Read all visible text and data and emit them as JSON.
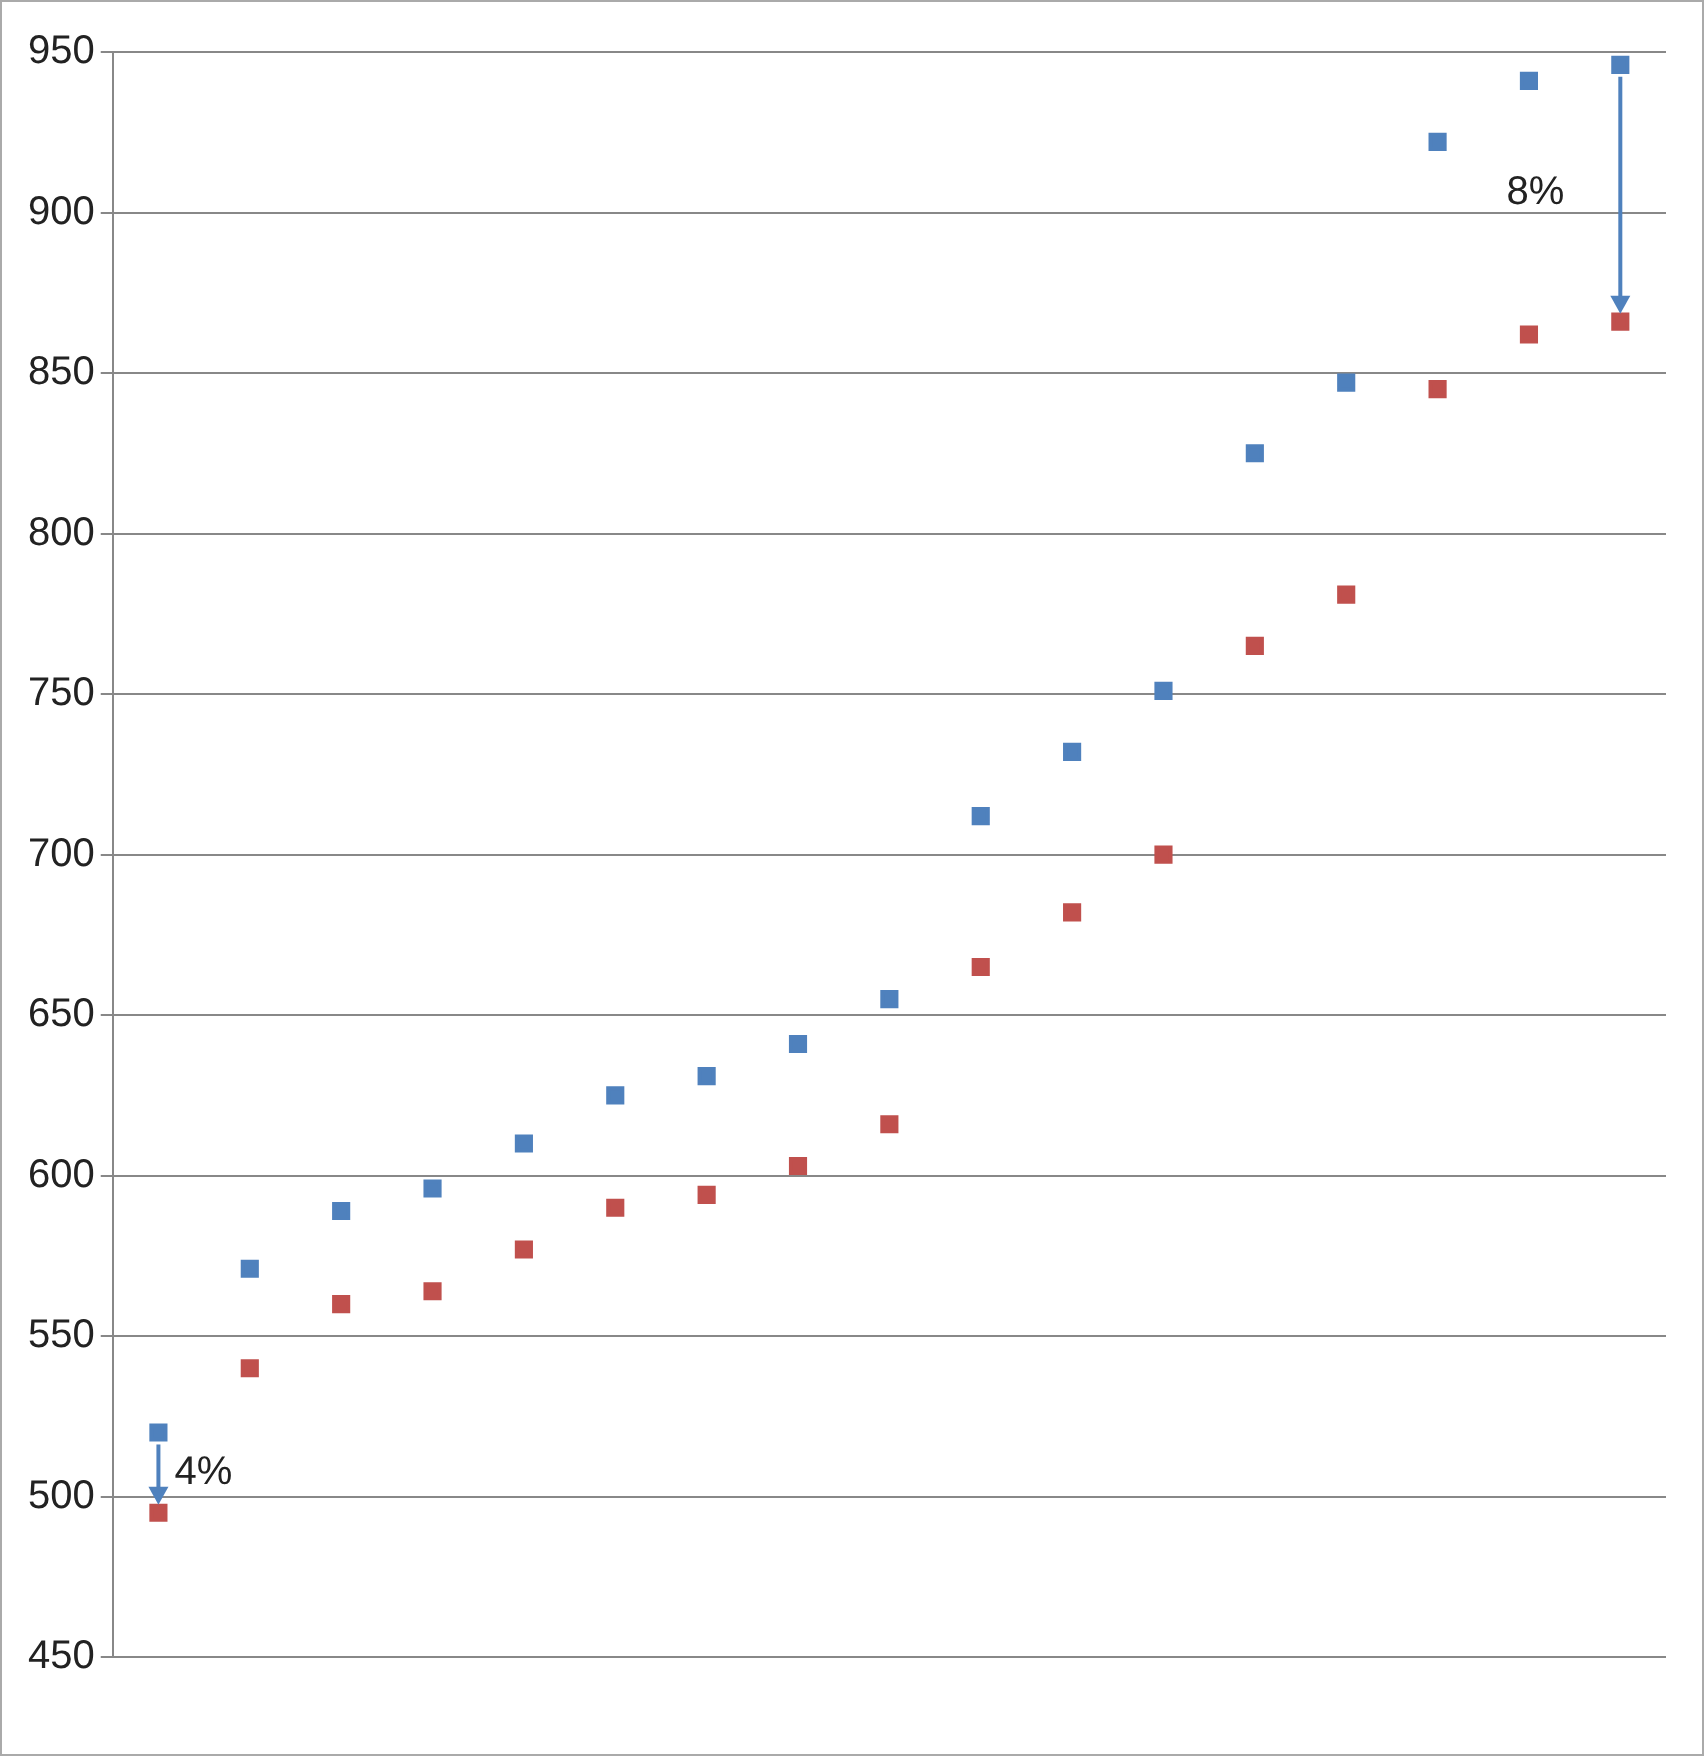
{
  "chart_data": {
    "type": "scatter",
    "categories": [
      null,
      null,
      null,
      null,
      null,
      null,
      null,
      null,
      null,
      null,
      null,
      null,
      null,
      null,
      null,
      null,
      null
    ],
    "series": [
      {
        "color": "#4f81bd",
        "values": [
          520,
          571,
          589,
          596,
          610,
          625,
          631,
          641,
          655,
          712,
          732,
          751,
          825,
          847,
          922,
          941,
          946
        ]
      },
      {
        "color": "#c0504d",
        "values": [
          495,
          540,
          560,
          564,
          577,
          590,
          594,
          603,
          616,
          665,
          682,
          700,
          765,
          781,
          845,
          862,
          866
        ]
      }
    ],
    "ylim": [
      450,
      950
    ],
    "yticks": [
      450,
      500,
      550,
      600,
      650,
      700,
      750,
      800,
      850,
      900,
      950
    ],
    "grid": "y",
    "marker": "square",
    "legend": false,
    "annotations": [
      "4%",
      "8%"
    ]
  }
}
